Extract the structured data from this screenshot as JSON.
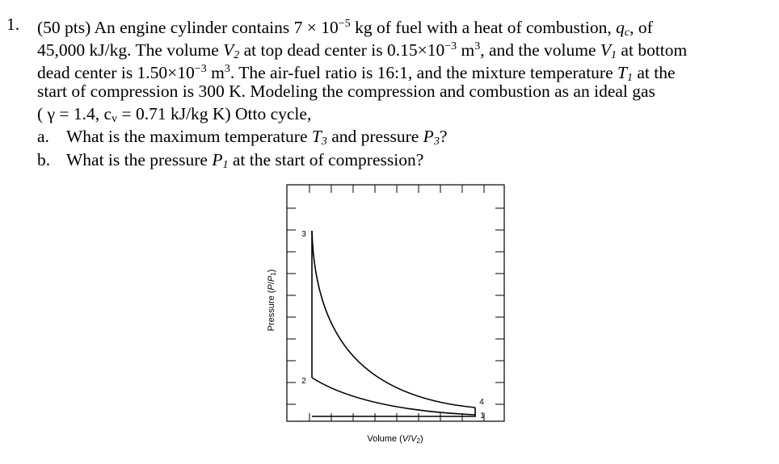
{
  "problem": {
    "number": "1.",
    "lines": [
      [
        "(50 pts) An engine cylinder contains 7 × 10",
        "−5",
        " kg of fuel with a heat of combustion, ",
        "q",
        "c",
        ", of"
      ],
      [
        "45,000 kJ/kg. The volume ",
        "V",
        "2",
        " at top dead center is 0.15×10",
        "−3",
        " m",
        "3",
        ", and the volume ",
        "V",
        "1",
        " at bottom"
      ],
      [
        "dead center is 1.50×10",
        "−3",
        " m",
        "3",
        ". The air-fuel ratio is 16:1, and the mixture temperature ",
        "T",
        "1",
        " at the"
      ],
      [
        "start of compression is 300 K. Modeling the compression and combustion as an ideal gas"
      ],
      [
        "( γ = 1.4, c",
        "v",
        " = 0.71 kJ/kg K) Otto cycle,"
      ]
    ],
    "parts": [
      {
        "label": "a.",
        "text": [
          "What is the maximum temperature ",
          "T",
          "3",
          " and pressure ",
          "P",
          "3",
          "?"
        ]
      },
      {
        "label": "b.",
        "text": [
          "What is the pressure ",
          "P",
          "1",
          " at the start of compression?"
        ]
      }
    ]
  },
  "diagram": {
    "y_axis": [
      "Pressure (",
      "P",
      "/",
      "P",
      "1",
      ")"
    ],
    "x_axis": [
      "Volume (",
      "V",
      "/",
      "V",
      "2",
      ")"
    ],
    "points": [
      "3",
      "2",
      "4",
      "1"
    ]
  }
}
